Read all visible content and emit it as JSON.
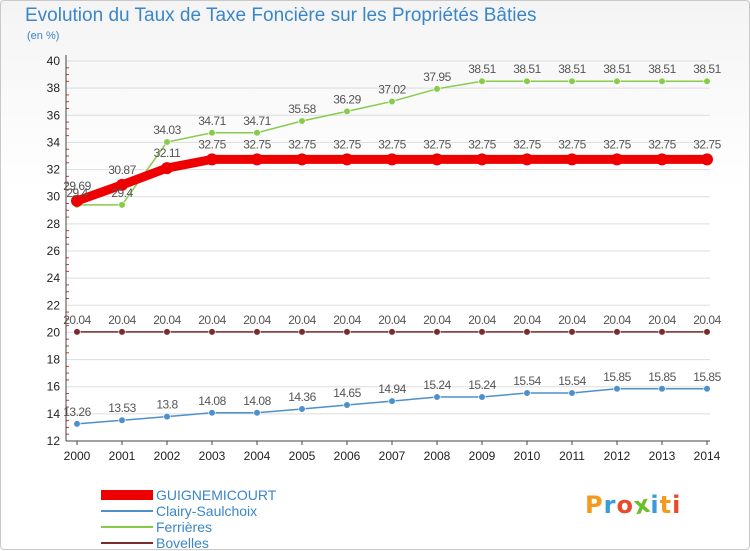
{
  "header": {
    "title": "Evolution du Taux de Taxe Foncière sur les Propriétés Bâties",
    "unit": "(en %)"
  },
  "logo": {
    "text": "Proxiti",
    "colors": [
      "#f39a1e",
      "#3b9ad9",
      "#e84b2a",
      "#6cbf2a",
      "#3b9ad9",
      "#f39a1e",
      "#e84b2a"
    ]
  },
  "colors": {
    "axis": "#444444",
    "grid": "#dddddd",
    "tick_text": "#222222",
    "minor_tick": "#e03030",
    "value_text": "#555555"
  },
  "chart_data": {
    "type": "line",
    "title": "Evolution du Taux de Taxe Foncière sur les Propriétés Bâties",
    "ylabel": "(en %)",
    "xlabel": "",
    "x": [
      2000,
      2001,
      2002,
      2003,
      2004,
      2005,
      2006,
      2007,
      2008,
      2009,
      2010,
      2011,
      2012,
      2013,
      2014
    ],
    "ylim": [
      12,
      40
    ],
    "yticks": [
      12,
      14,
      16,
      18,
      20,
      22,
      24,
      26,
      28,
      30,
      32,
      34,
      36,
      38,
      40
    ],
    "grid": true,
    "legend": "bottom-left",
    "series": [
      {
        "name": "GUIGNEMICOURT",
        "color": "#ee0000",
        "emphasis": true,
        "values": [
          29.69,
          30.87,
          32.11,
          32.75,
          32.75,
          32.75,
          32.75,
          32.75,
          32.75,
          32.75,
          32.75,
          32.75,
          32.75,
          32.75,
          32.75
        ],
        "labels": [
          "29.69",
          "30.87",
          "32.11",
          "32.75",
          "32.75",
          "32.75",
          "32.75",
          "32.75",
          "32.75",
          "32.75",
          "32.75",
          "32.75",
          "32.75",
          "32.75",
          "32.75"
        ]
      },
      {
        "name": "Clairy-Saulchoix",
        "color": "#4d90cc",
        "emphasis": false,
        "values": [
          13.26,
          13.53,
          13.8,
          14.08,
          14.08,
          14.36,
          14.65,
          14.94,
          15.24,
          15.24,
          15.54,
          15.54,
          15.85,
          15.85,
          15.85
        ],
        "labels": [
          "13.26",
          "13.53",
          "13.8",
          "14.08",
          "14.08",
          "14.36",
          "14.65",
          "14.94",
          "15.24",
          "15.24",
          "15.54",
          "15.54",
          "15.85",
          "15.85",
          "15.85"
        ]
      },
      {
        "name": "Ferrières",
        "color": "#86cc4a",
        "emphasis": false,
        "values": [
          29.4,
          29.4,
          34.03,
          34.71,
          34.71,
          35.58,
          36.29,
          37.02,
          37.95,
          38.51,
          38.51,
          38.51,
          38.51,
          38.51,
          38.51
        ],
        "labels": [
          "29.4",
          "29.4",
          "34.03",
          "34.71",
          "34.71",
          "35.58",
          "36.29",
          "37.02",
          "37.95",
          "38.51",
          "38.51",
          "38.51",
          "38.51",
          "38.51",
          "38.51"
        ]
      },
      {
        "name": "Bovelles",
        "color": "#7a2b2b",
        "emphasis": false,
        "values": [
          20.04,
          20.04,
          20.04,
          20.04,
          20.04,
          20.04,
          20.04,
          20.04,
          20.04,
          20.04,
          20.04,
          20.04,
          20.04,
          20.04,
          20.04
        ],
        "labels": [
          "20.04",
          "20.04",
          "20.04",
          "20.04",
          "20.04",
          "20.04",
          "20.04",
          "20.04",
          "20.04",
          "20.04",
          "20.04",
          "20.04",
          "20.04",
          "20.04",
          "20.04"
        ]
      }
    ]
  }
}
